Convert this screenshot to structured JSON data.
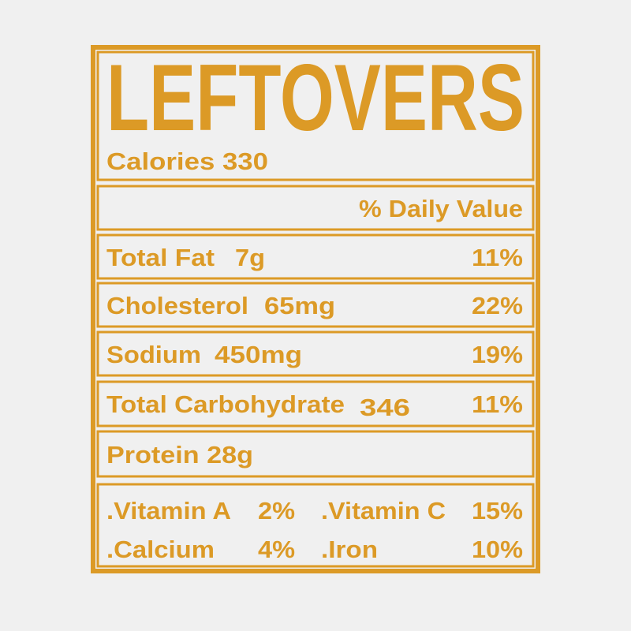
{
  "title": "LEFTOVERS",
  "calories": "Calories 330",
  "daily_value_header": "% Daily Value",
  "nutrients": [
    {
      "name": "Total Fat",
      "amount": "7g",
      "daily_value": "11%"
    },
    {
      "name": "Cholesterol",
      "amount": "65mg",
      "daily_value": "22%"
    },
    {
      "name": "Sodium",
      "amount": "450mg",
      "daily_value": "19%"
    },
    {
      "name": "Total Carbohydrate",
      "amount": "346",
      "daily_value": "11%"
    }
  ],
  "protein": "Protein 28g",
  "vitamins": [
    {
      "name": ".Vitamin A",
      "value": "2%"
    },
    {
      "name": ".Vitamin C",
      "value": "15%"
    },
    {
      "name": ".Calcium",
      "value": "4%"
    },
    {
      "name": ".Iron",
      "value": "10%"
    }
  ]
}
